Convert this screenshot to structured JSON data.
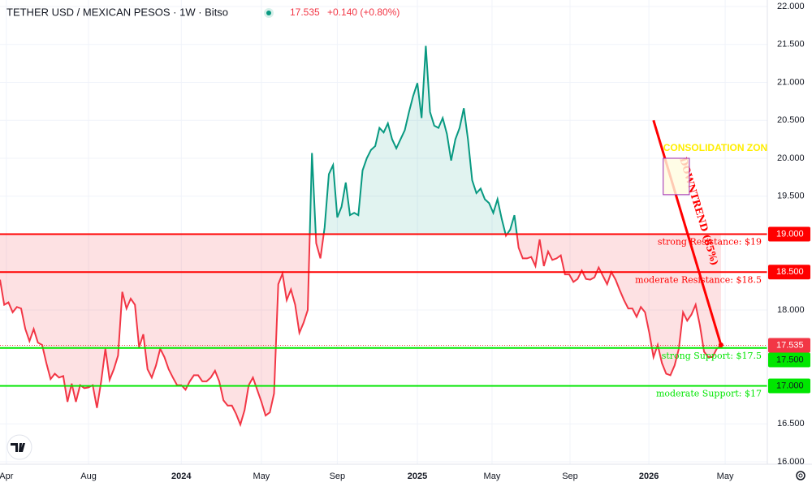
{
  "header": {
    "title": "TETHER USD / MEXICAN PESOS · 1W · Bitso",
    "price": "17.535",
    "change": "+0.140 (+0.80%)"
  },
  "chart_data": {
    "type": "baseline-area",
    "baseline": 19,
    "values": [
      18.4,
      18.07,
      18.1,
      17.97,
      18.04,
      18.02,
      17.75,
      17.59,
      17.75,
      17.57,
      17.54,
      17.3,
      17.09,
      17.16,
      17.11,
      17.13,
      16.79,
      17.03,
      16.79,
      17.01,
      16.97,
      16.98,
      17.01,
      16.71,
      17.06,
      17.49,
      17.08,
      17.22,
      17.4,
      18.24,
      18.02,
      18.15,
      18.07,
      17.51,
      17.68,
      17.22,
      17.11,
      17.27,
      17.49,
      17.38,
      17.22,
      17.11,
      17.01,
      17.01,
      16.95,
      17.06,
      17.14,
      17.14,
      17.06,
      17.06,
      17.11,
      17.2,
      17.06,
      16.81,
      16.74,
      16.74,
      16.63,
      16.49,
      16.68,
      17.01,
      17.11,
      16.95,
      16.79,
      16.61,
      16.65,
      16.9,
      18.34,
      18.48,
      18.13,
      18.27,
      18.07,
      17.7,
      17.83,
      18.0,
      20.07,
      18.88,
      18.68,
      19.09,
      19.79,
      19.91,
      19.22,
      19.36,
      19.68,
      19.25,
      19.28,
      19.25,
      19.84,
      20.0,
      20.11,
      20.16,
      20.4,
      20.34,
      20.46,
      20.25,
      20.13,
      20.25,
      20.37,
      20.61,
      20.82,
      20.99,
      20.53,
      21.48,
      20.61,
      20.43,
      20.4,
      20.53,
      20.32,
      19.97,
      20.25,
      20.4,
      20.66,
      20.25,
      19.71,
      19.54,
      19.6,
      19.46,
      19.41,
      19.28,
      19.46,
      19.2,
      18.98,
      19.06,
      19.25,
      18.82,
      18.68,
      18.68,
      18.7,
      18.58,
      18.93,
      18.58,
      18.77,
      18.66,
      18.68,
      18.72,
      18.47,
      18.47,
      18.37,
      18.41,
      18.52,
      18.41,
      18.4,
      18.43,
      18.56,
      18.45,
      18.34,
      18.5,
      18.4,
      18.26,
      18.13,
      18.02,
      18.02,
      17.91,
      18.04,
      17.97,
      17.7,
      17.38,
      17.54,
      17.3,
      17.16,
      17.14,
      17.27,
      17.49,
      17.97,
      17.86,
      17.94,
      18.07,
      17.8,
      17.45,
      17.38,
      17.38,
      17.49,
      17.535
    ],
    "xlim": [
      0,
      182
    ],
    "xticks": [
      {
        "value": 1.5,
        "label": "Apr"
      },
      {
        "value": 21,
        "label": "Aug"
      },
      {
        "value": 43,
        "label": "2024"
      },
      {
        "value": 62,
        "label": "May"
      },
      {
        "value": 80,
        "label": "Sep"
      },
      {
        "value": 99,
        "label": "2025"
      },
      {
        "value": 116.7,
        "label": "May"
      },
      {
        "value": 135.2,
        "label": "Sep"
      },
      {
        "value": 153.9,
        "label": "2026"
      },
      {
        "value": 172,
        "label": "May"
      }
    ],
    "ylim": [
      16,
      22
    ],
    "yticks": [
      {
        "value": 16,
        "label": "16.000"
      },
      {
        "value": 16.5,
        "label": "16.500"
      },
      {
        "value": 17,
        "label": "17.000"
      },
      {
        "value": 17.5,
        "label": "17.500"
      },
      {
        "value": 18,
        "label": "18.000"
      },
      {
        "value": 18.5,
        "label": "18.500"
      },
      {
        "value": 19,
        "label": "19.000"
      },
      {
        "value": 19.5,
        "label": "19.500"
      },
      {
        "value": 20,
        "label": "20.000"
      },
      {
        "value": 20.5,
        "label": "20.500"
      },
      {
        "value": 21,
        "label": "21.000"
      },
      {
        "value": 21.5,
        "label": "21.500"
      },
      {
        "value": 22,
        "label": "22.000"
      }
    ],
    "grid": true,
    "up_color": "#089981",
    "down_color": "#f23645",
    "levels": [
      {
        "value": 19,
        "label": "19.000",
        "text": "strong Resistance: $19",
        "color": "#ff0000"
      },
      {
        "value": 18.5,
        "label": "18.500",
        "text": "moderate Resistance: $18.5",
        "color": "#ff0000"
      },
      {
        "value": 17.5,
        "label": "17.500",
        "text": "strong Support: $17.5",
        "color": "#00e600"
      },
      {
        "value": 17,
        "label": "17.000",
        "text": "moderate Support: $17",
        "color": "#00e600"
      }
    ],
    "annotations": [
      {
        "type": "trendline",
        "text": "DOWNTREND (85%)",
        "x": [
          155,
          171
        ],
        "y": [
          20.5,
          17.54
        ],
        "color": "#ff0000"
      },
      {
        "type": "box",
        "text": "CONSOLIDATION ZONE",
        "x": [
          157.3,
          163.5
        ],
        "y": [
          19.52,
          20.0
        ],
        "color": "#ffee00"
      }
    ]
  }
}
